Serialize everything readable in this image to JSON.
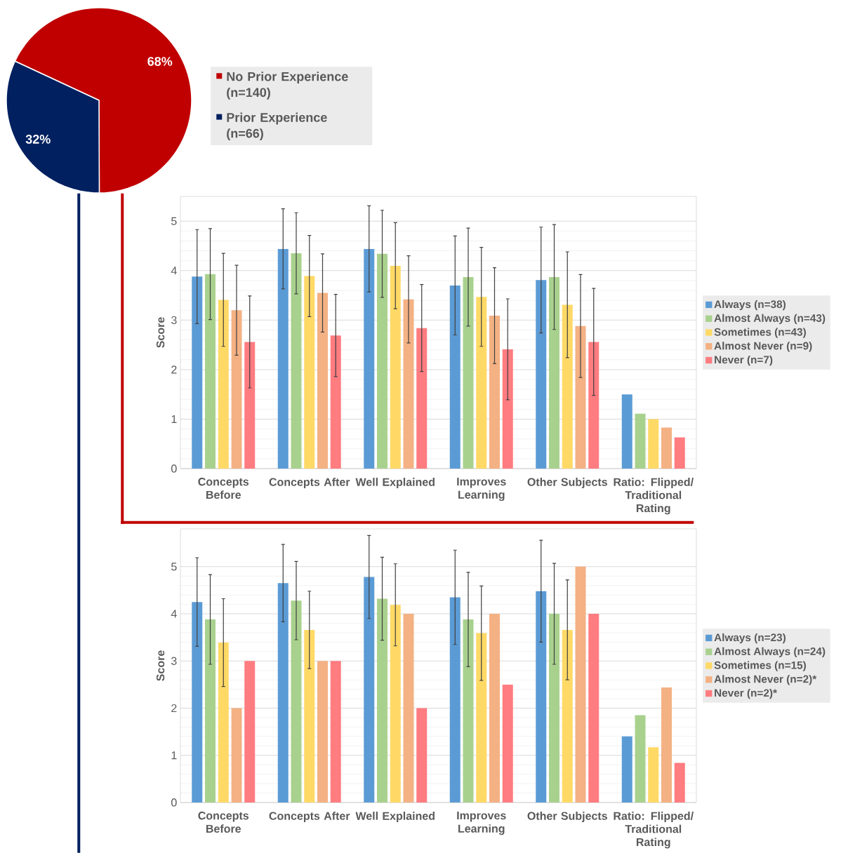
{
  "chart_data": [
    {
      "type": "pie",
      "categories": [
        "No Prior Experience (n=140)",
        "Prior Experience (n=66)"
      ],
      "values": [
        68,
        32
      ],
      "value_labels": [
        "68%",
        "32%"
      ],
      "colors": [
        "#c00000",
        "#002060"
      ],
      "legend": "right"
    },
    {
      "type": "bar",
      "categories": [
        "Concepts Before",
        "Concepts After",
        "Well Explained",
        "Improves Learning",
        "Other Subjects",
        "Ratio: Flipped/ Traditional Rating"
      ],
      "ylabel": "Score",
      "ylim": [
        0,
        5.5
      ],
      "yticks": [
        0,
        1,
        2,
        3,
        4,
        5
      ],
      "grid": "y",
      "legend": "right",
      "series": [
        {
          "name": "Always (n=38)",
          "color": "#5b9bd5",
          "values": [
            3.88,
            4.44,
            4.44,
            3.7,
            3.81,
            1.5
          ],
          "errors": [
            0.95,
            0.81,
            0.87,
            1.0,
            1.07,
            null
          ]
        },
        {
          "name": "Almost Always (n=43)",
          "color": "#a9d18e",
          "values": [
            3.93,
            4.35,
            4.34,
            3.87,
            3.87,
            1.11
          ],
          "errors": [
            0.92,
            0.82,
            0.88,
            0.99,
            1.06,
            null
          ]
        },
        {
          "name": "Sometimes (n=43)",
          "color": "#ffd966",
          "values": [
            3.41,
            3.89,
            4.1,
            3.47,
            3.31,
            1.0
          ],
          "errors": [
            0.94,
            0.82,
            0.87,
            1.0,
            1.07,
            null
          ]
        },
        {
          "name": "Almost Never (n=9)",
          "color": "#f4b183",
          "values": [
            3.2,
            3.55,
            3.42,
            3.09,
            2.88,
            0.83
          ],
          "errors": [
            0.91,
            0.79,
            0.88,
            0.97,
            1.04,
            null
          ]
        },
        {
          "name": "Never (n=7)",
          "color": "#ff7c80",
          "values": [
            2.56,
            2.69,
            2.84,
            2.41,
            2.56,
            0.63
          ],
          "errors": [
            0.93,
            0.83,
            0.88,
            1.02,
            1.08,
            null
          ]
        }
      ]
    },
    {
      "type": "bar",
      "categories": [
        "Concepts Before",
        "Concepts After",
        "Well Explained",
        "Improves Learning",
        "Other Subjects",
        "Ratio: Flipped/ Traditional Rating"
      ],
      "ylabel": "Score",
      "ylim": [
        0,
        5.8
      ],
      "yticks": [
        0,
        1,
        2,
        3,
        4,
        5
      ],
      "grid": "y",
      "legend": "right",
      "series": [
        {
          "name": "Always (n=23)",
          "color": "#5b9bd5",
          "values": [
            4.25,
            4.65,
            4.78,
            4.35,
            4.48,
            1.4
          ],
          "errors": [
            0.94,
            0.82,
            0.88,
            1.0,
            1.08,
            null
          ]
        },
        {
          "name": "Almost Always (n=24)",
          "color": "#a9d18e",
          "values": [
            3.88,
            4.28,
            4.32,
            3.88,
            4.0,
            1.85
          ],
          "errors": [
            0.95,
            0.83,
            0.88,
            1.0,
            1.07,
            null
          ]
        },
        {
          "name": "Sometimes (n=15)",
          "color": "#ffd966",
          "values": [
            3.39,
            3.66,
            4.19,
            3.59,
            3.66,
            1.17
          ],
          "errors": [
            0.93,
            0.82,
            0.87,
            1.0,
            1.06,
            null
          ]
        },
        {
          "name": "Almost Never (n=2)*",
          "color": "#f4b183",
          "values": [
            2,
            3,
            4,
            4,
            5,
            2.44
          ]
        },
        {
          "name": "Never (n=2)*",
          "color": "#ff7c80",
          "values": [
            3,
            3,
            2,
            2.5,
            4,
            0.84
          ]
        }
      ]
    }
  ]
}
